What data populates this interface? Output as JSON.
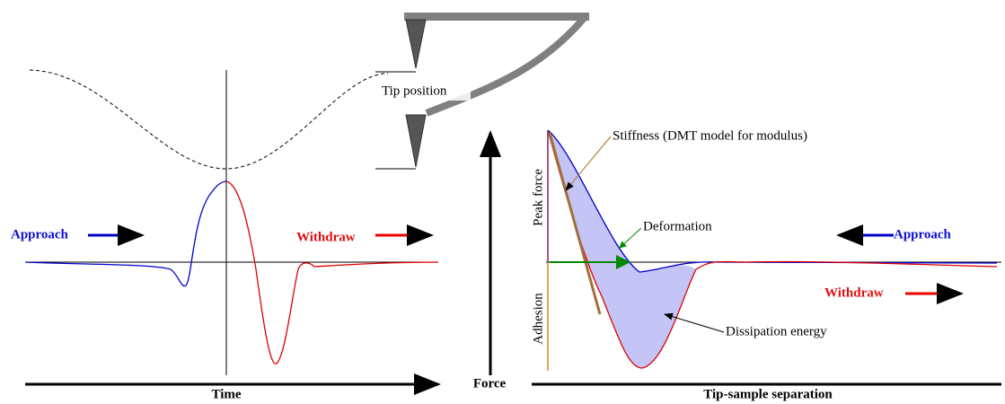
{
  "left_panel": {
    "approach": "Approach",
    "withdraw": "Withdraw",
    "x_axis_label": "Time"
  },
  "cantilever": {
    "label": "Tip position"
  },
  "right_panel": {
    "y_axis_label": "Force",
    "x_axis_label": "Tip-sample separation",
    "approach": "Approach",
    "withdraw": "Withdraw",
    "annotations": {
      "peak_force": "Peak force",
      "stiffness": "Stiffness (DMT model for modulus)",
      "deformation": "Deformation",
      "adhesion": "Adhesion",
      "dissipation": "Dissipation energy"
    }
  }
}
